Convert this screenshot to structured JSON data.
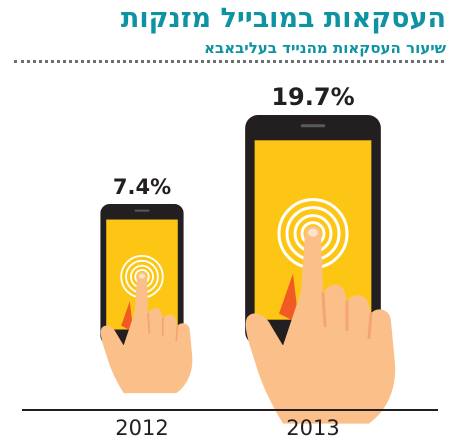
{
  "header": {
    "title": "העסקאות במובייל מזנקות",
    "subtitle": "שיעור העסקאות מהנייד בעליבאבא"
  },
  "colors": {
    "title": "#0d93a1",
    "phone_body": "#231f20",
    "screen": "#fdc614",
    "hand": "#fbbf8a",
    "hand_shadow": "#f4a572",
    "sleeve_accent": "#f15a24",
    "rings": "#ffffff",
    "axis": "#231f20"
  },
  "chart_data": {
    "type": "bar",
    "categories": [
      "2012",
      "2013"
    ],
    "values": [
      7.4,
      19.7
    ],
    "value_labels": [
      "7.4%",
      "19.7%"
    ],
    "unit": "%",
    "marks": "phone-pictogram",
    "ylim": [
      0,
      20
    ],
    "grid": false,
    "legend": "none"
  }
}
